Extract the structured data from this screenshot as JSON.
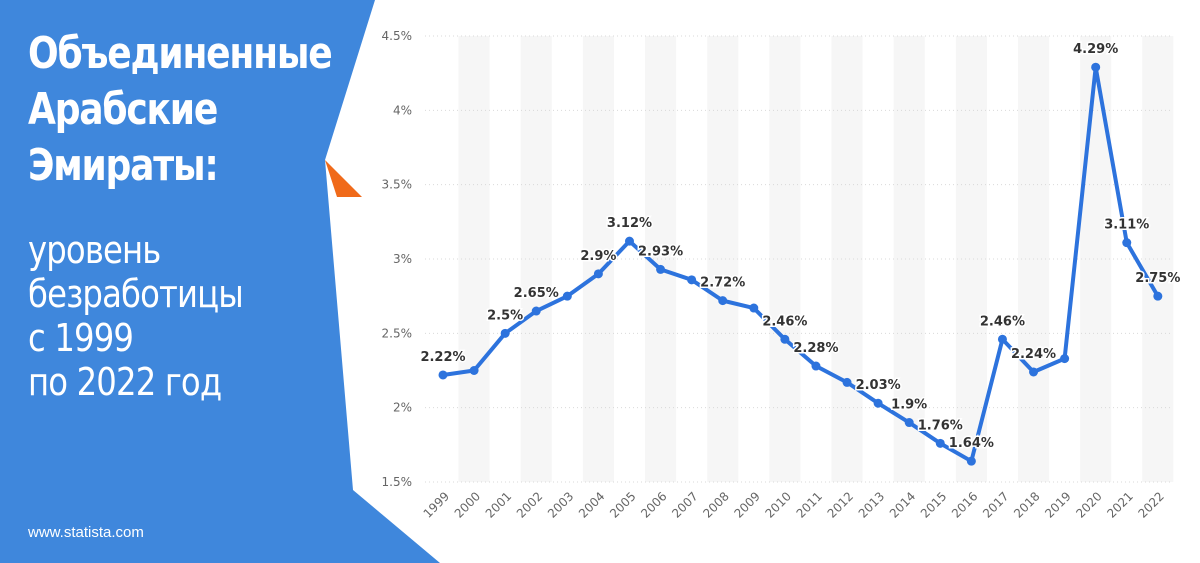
{
  "header": {
    "title_lines": [
      "Объединенные",
      "Арабские",
      "Эмираты:"
    ],
    "subtitle_lines": [
      "уровень",
      "безработицы",
      "с 1999",
      "по 2022 год"
    ]
  },
  "footer": {
    "source": "www.statista.com"
  },
  "colors": {
    "panel_blue": "#3f87dc",
    "accent_orange": "#f06a1a",
    "line_blue": "#2d73dd",
    "label_text": "#333333",
    "axis_text": "#666666"
  },
  "chart_data": {
    "type": "line",
    "title": "",
    "xlabel": "",
    "ylabel": "",
    "ylim": [
      1.5,
      4.5
    ],
    "y_ticks": [
      "1.5%",
      "2%",
      "2.5%",
      "3%",
      "3.5%",
      "4%",
      "4.5%"
    ],
    "y_tick_values": [
      1.5,
      2,
      2.5,
      3,
      3.5,
      4,
      4.5
    ],
    "grid": "alternating vertical bands",
    "categories": [
      "1999",
      "2000",
      "2001",
      "2002",
      "2003",
      "2004",
      "2005",
      "2006",
      "2007",
      "2008",
      "2009",
      "2010",
      "2011",
      "2012",
      "2013",
      "2014",
      "2015",
      "2016",
      "2017",
      "2018",
      "2019",
      "2020",
      "2021",
      "2022"
    ],
    "values": [
      2.22,
      2.25,
      2.5,
      2.65,
      2.75,
      2.9,
      3.12,
      2.93,
      2.86,
      2.72,
      2.67,
      2.46,
      2.28,
      2.17,
      2.03,
      1.9,
      1.76,
      1.64,
      2.46,
      2.24,
      2.33,
      4.29,
      3.11,
      2.75
    ],
    "data_labels": [
      "2.22%",
      "",
      "2.5%",
      "2.65%",
      "",
      "2.9%",
      "3.12%",
      "2.93%",
      "",
      "2.72%",
      "",
      "2.46%",
      "2.28%",
      "",
      "2.03%",
      "1.9%",
      "1.76%",
      "1.64%",
      "2.46%",
      "2.24%",
      "",
      "4.29%",
      "3.11%",
      "2.75%"
    ]
  }
}
